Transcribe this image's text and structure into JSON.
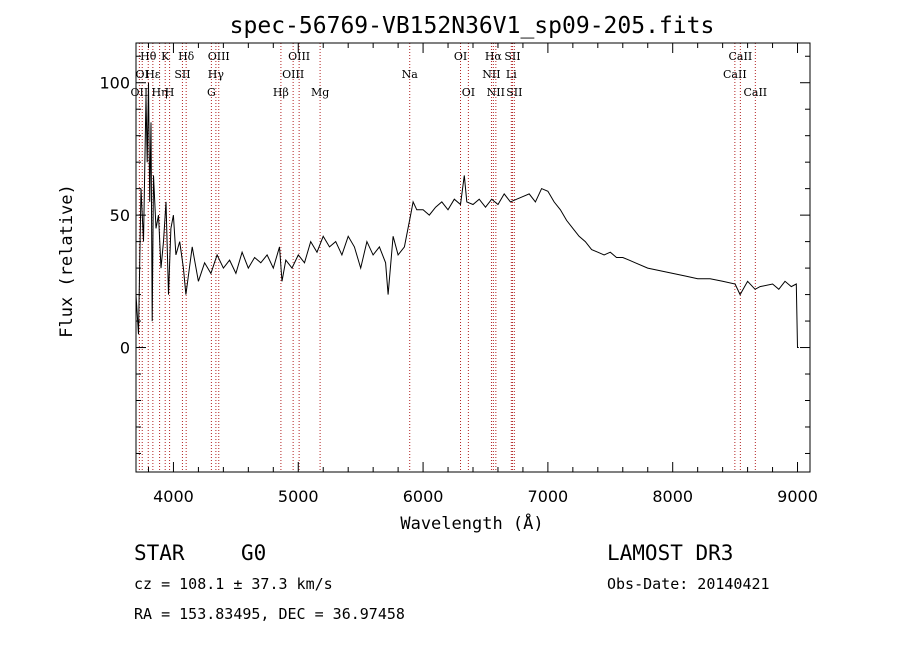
{
  "chart_data": {
    "type": "line",
    "title": "spec-56769-VB152N36V1_sp09-205.fits",
    "xlabel": "Wavelength (Å)",
    "ylabel": "Flux (relative)",
    "xlim": [
      3700,
      9100
    ],
    "ylim": [
      -47,
      115
    ],
    "x_ticks": [
      4000,
      5000,
      6000,
      7000,
      8000,
      9000
    ],
    "y_ticks": [
      0,
      50,
      100
    ],
    "series": [
      {
        "name": "flux",
        "x": [
          3700,
          3720,
          3740,
          3760,
          3780,
          3790,
          3800,
          3810,
          3820,
          3830,
          3840,
          3860,
          3880,
          3900,
          3920,
          3940,
          3960,
          3980,
          4000,
          4020,
          4050,
          4080,
          4100,
          4150,
          4200,
          4250,
          4300,
          4350,
          4400,
          4450,
          4500,
          4550,
          4600,
          4650,
          4700,
          4750,
          4800,
          4850,
          4870,
          4900,
          4950,
          5000,
          5050,
          5100,
          5150,
          5200,
          5250,
          5300,
          5350,
          5400,
          5450,
          5500,
          5550,
          5600,
          5650,
          5700,
          5720,
          5760,
          5800,
          5850,
          5900,
          5920,
          5950,
          6000,
          6050,
          6100,
          6150,
          6200,
          6250,
          6300,
          6330,
          6350,
          6400,
          6450,
          6500,
          6550,
          6600,
          6650,
          6700,
          6750,
          6800,
          6850,
          6900,
          6950,
          7000,
          7050,
          7100,
          7150,
          7200,
          7250,
          7300,
          7350,
          7400,
          7450,
          7500,
          7550,
          7600,
          7650,
          7700,
          7800,
          7900,
          8000,
          8100,
          8200,
          8300,
          8400,
          8500,
          8540,
          8600,
          8660,
          8700,
          8800,
          8850,
          8900,
          8950,
          8990,
          9000,
          9010
        ],
        "values": [
          20,
          5,
          60,
          40,
          95,
          70,
          100,
          55,
          85,
          10,
          65,
          45,
          50,
          30,
          40,
          55,
          20,
          45,
          50,
          35,
          40,
          30,
          20,
          38,
          25,
          32,
          28,
          35,
          30,
          33,
          28,
          36,
          30,
          34,
          32,
          35,
          30,
          38,
          25,
          33,
          30,
          35,
          32,
          40,
          36,
          42,
          38,
          40,
          35,
          42,
          38,
          30,
          40,
          35,
          38,
          32,
          20,
          42,
          35,
          38,
          50,
          55,
          52,
          52,
          50,
          53,
          55,
          52,
          56,
          54,
          65,
          55,
          54,
          56,
          53,
          56,
          54,
          58,
          55,
          56,
          57,
          58,
          55,
          60,
          59,
          55,
          52,
          48,
          45,
          42,
          40,
          37,
          36,
          35,
          36,
          34,
          34,
          33,
          32,
          30,
          29,
          28,
          27,
          26,
          26,
          25,
          24,
          20,
          25,
          22,
          23,
          24,
          22,
          25,
          23,
          24,
          0,
          0
        ]
      }
    ],
    "spectral_lines": [
      {
        "wavelength": 3727,
        "label": "OII",
        "row": 3
      },
      {
        "wavelength": 3750,
        "label": "OI",
        "row": 2
      },
      {
        "wavelength": 3798,
        "label": "Hθ",
        "row": 1
      },
      {
        "wavelength": 3835,
        "label": "Hε",
        "row": 2
      },
      {
        "wavelength": 3889,
        "label": "Hη",
        "row": 3
      },
      {
        "wavelength": 3934,
        "label": "K",
        "row": 1
      },
      {
        "wavelength": 3969,
        "label": "H",
        "row": 3
      },
      {
        "wavelength": 4072,
        "label": "SII",
        "row": 2
      },
      {
        "wavelength": 4102,
        "label": "Hδ",
        "row": 1
      },
      {
        "wavelength": 4304,
        "label": "G",
        "row": 3
      },
      {
        "wavelength": 4340,
        "label": "Hγ",
        "row": 2
      },
      {
        "wavelength": 4363,
        "label": "OIII",
        "row": 1
      },
      {
        "wavelength": 4861,
        "label": "Hβ",
        "row": 3
      },
      {
        "wavelength": 4959,
        "label": "OIII",
        "row": 2
      },
      {
        "wavelength": 5007,
        "label": "OIII",
        "row": 1
      },
      {
        "wavelength": 5175,
        "label": "Mg",
        "row": 3
      },
      {
        "wavelength": 5893,
        "label": "Na",
        "row": 2
      },
      {
        "wavelength": 6300,
        "label": "OI",
        "row": 1
      },
      {
        "wavelength": 6363,
        "label": "OI",
        "row": 3
      },
      {
        "wavelength": 6548,
        "label": "NII",
        "row": 2
      },
      {
        "wavelength": 6563,
        "label": "Hα",
        "row": 1
      },
      {
        "wavelength": 6583,
        "label": "NII",
        "row": 3
      },
      {
        "wavelength": 6707,
        "label": "Li",
        "row": 2
      },
      {
        "wavelength": 6716,
        "label": "SII",
        "row": 1
      },
      {
        "wavelength": 6731,
        "label": "SII",
        "row": 3
      },
      {
        "wavelength": 8498,
        "label": "CaII",
        "row": 2
      },
      {
        "wavelength": 8542,
        "label": "CaII",
        "row": 1
      },
      {
        "wavelength": 8662,
        "label": "CaII",
        "row": 3
      }
    ],
    "grid": false
  },
  "info": {
    "object_class": "STAR",
    "subclass": "G0",
    "survey": "LAMOST DR3",
    "cz": "cz = 108.1 ± 37.3 km/s",
    "obs_date": "Obs-Date: 20140421",
    "coords": "RA = 153.83495, DEC =  36.97458"
  },
  "colors": {
    "spectrum": "#000000",
    "line_marker": "#b22222",
    "axes": "#000000",
    "background": "#ffffff"
  }
}
